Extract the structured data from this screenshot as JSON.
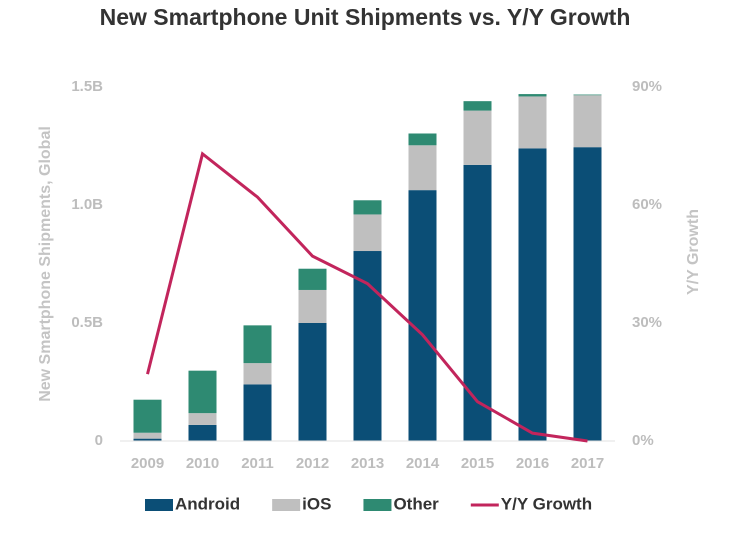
{
  "chart_data": {
    "type": "bar",
    "title": "New Smartphone Unit Shipments vs. Y/Y Growth",
    "y_label": "New Smartphone Shipments, Global",
    "y2_label": "Y/Y Growth",
    "stacked": true,
    "categories": [
      "2009",
      "2010",
      "2011",
      "2012",
      "2013",
      "2014",
      "2015",
      "2016",
      "2017"
    ],
    "series": [
      {
        "name": "Android",
        "color": "#0b4e76",
        "type": "bar",
        "values": [
          0.01,
          0.068,
          0.24,
          0.5,
          0.805,
          1.063,
          1.17,
          1.24,
          1.245
        ]
      },
      {
        "name": "iOS",
        "color": "#bfbfbf",
        "type": "bar",
        "values": [
          0.025,
          0.05,
          0.09,
          0.14,
          0.155,
          0.19,
          0.23,
          0.22,
          0.22
        ]
      },
      {
        "name": "Other",
        "color": "#2e8a72",
        "type": "bar",
        "values": [
          0.14,
          0.18,
          0.16,
          0.09,
          0.06,
          0.05,
          0.04,
          0.01,
          0.003
        ]
      },
      {
        "name": "Y/Y Growth",
        "color": "#c2255c",
        "type": "line",
        "axis": "y2",
        "values": [
          17,
          73,
          62,
          47,
          40,
          27,
          10,
          2,
          0
        ]
      }
    ],
    "ylim": [
      0,
      1.5
    ],
    "yticks": [
      0,
      {
        "value": 0.5,
        "label": "0.5B"
      },
      {
        "value": 1.0,
        "label": "1.0B"
      },
      {
        "value": 1.5,
        "label": "1.5B"
      }
    ],
    "y2lim": [
      0,
      90
    ],
    "y2ticks": [
      {
        "value": 0,
        "label": "0%"
      },
      {
        "value": 30,
        "label": "30%"
      },
      {
        "value": 60,
        "label": "60%"
      },
      {
        "value": 90,
        "label": "90%"
      }
    ],
    "grid": false,
    "legend": "bottom"
  }
}
